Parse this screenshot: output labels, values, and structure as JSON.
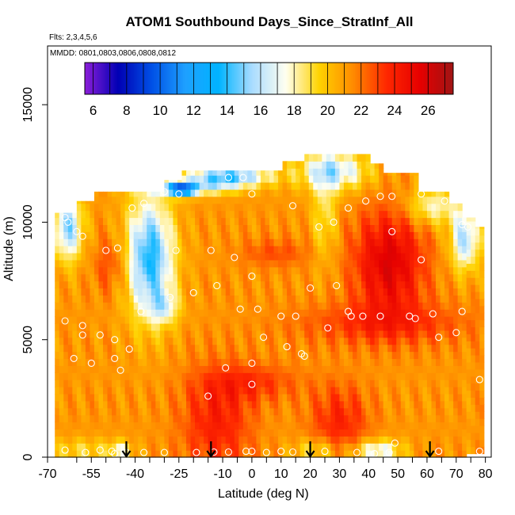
{
  "chart_data": {
    "type": "heatmap",
    "title": "ATOM1 Southbound Days_Since_StratInf_All",
    "flights_label": "Flts: 2,3,4,5,6",
    "dates_label": "MMDD: 0801,0803,0806,0808,0812",
    "xlabel": "Latitude (deg N)",
    "ylabel": "Altitude (m)",
    "xlim": [
      -70,
      82
    ],
    "ylim": [
      0,
      17500
    ],
    "x_ticks": [
      -70,
      -55,
      -40,
      -25,
      -10,
      0,
      10,
      20,
      30,
      40,
      50,
      60,
      70,
      80
    ],
    "x_tick_labels": [
      "-70",
      "-55",
      "-40",
      "-25",
      "-10",
      "0",
      "10",
      "20",
      "30",
      "40",
      "50",
      "60",
      "70",
      "80"
    ],
    "x_minor_ticks": [
      -60,
      -50,
      -45,
      -35,
      -30,
      -20,
      -15,
      -5,
      5,
      15,
      25,
      35,
      45,
      55,
      65,
      75
    ],
    "y_ticks": [
      0,
      5000,
      10000,
      15000
    ],
    "y_tick_labels": [
      "0",
      "5000",
      "10000",
      "15000"
    ],
    "colorbar": {
      "min": 5.5,
      "max": 27.5,
      "ticks": [
        6,
        8,
        10,
        12,
        14,
        16,
        18,
        20,
        22,
        24,
        26
      ],
      "tick_labels": [
        "6",
        "8",
        "10",
        "12",
        "14",
        "16",
        "18",
        "20",
        "22",
        "24",
        "26"
      ],
      "colors": [
        "#8c1ed9",
        "#0000b4",
        "#0050e6",
        "#1ea0ff",
        "#00b4ff",
        "#aadcff",
        "#fffff0",
        "#ffd200",
        "#ff8c00",
        "#ff2800",
        "#e60000",
        "#a01414"
      ]
    },
    "arrows_latitudes": [
      -43,
      -14,
      20,
      61
    ]
  }
}
